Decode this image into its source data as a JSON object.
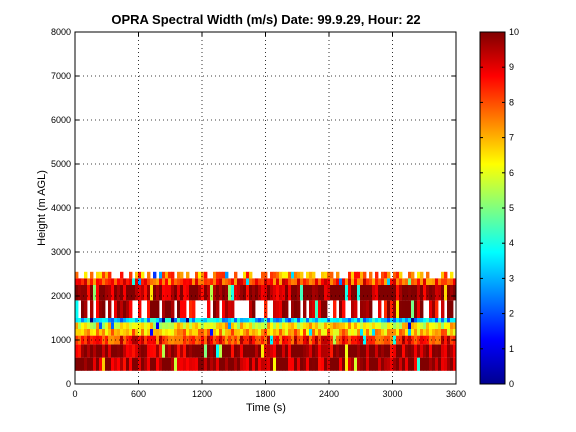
{
  "chart_data": {
    "type": "heatmap",
    "title": "OPRA Spectral Width (m/s)  Date: 99.9.29, Hour: 22",
    "xlabel": "Time (s)",
    "ylabel": "Height (m AGL)",
    "xlim": [
      0,
      3600
    ],
    "ylim": [
      0,
      8000
    ],
    "x_ticks": [
      "0",
      "600",
      "1200",
      "1800",
      "2400",
      "3000",
      "3600"
    ],
    "y_ticks": [
      "0",
      "1000",
      "2000",
      "3000",
      "4000",
      "5000",
      "6000",
      "7000",
      "8000"
    ],
    "grid": true,
    "colormap": "jet",
    "colorbar": {
      "range": [
        0,
        10
      ],
      "ticks": [
        "0",
        "1",
        "2",
        "3",
        "4",
        "5",
        "6",
        "7",
        "8",
        "9",
        "10"
      ]
    },
    "bands": [
      {
        "height_range": [
          300,
          600
        ],
        "typical_value": 9.8
      },
      {
        "height_range": [
          600,
          900
        ],
        "typical_value": 9.7
      },
      {
        "height_range": [
          900,
          1100
        ],
        "typical_value": 8.5
      },
      {
        "height_range": [
          1100,
          1250
        ],
        "typical_value": 7.0
      },
      {
        "height_range": [
          1250,
          1400
        ],
        "typical_value": 6.3
      },
      {
        "height_range": [
          1400,
          1500
        ],
        "typical_value": 3.2
      },
      {
        "height_range": [
          1500,
          1900
        ],
        "typical_value": 9.5,
        "sparse": true
      },
      {
        "height_range": [
          1900,
          2250
        ],
        "typical_value": 9.8
      },
      {
        "height_range": [
          2250,
          2400
        ],
        "typical_value": 8.2
      },
      {
        "height_range": [
          2400,
          2550
        ],
        "typical_value": 7.5,
        "sparse": true
      }
    ]
  }
}
